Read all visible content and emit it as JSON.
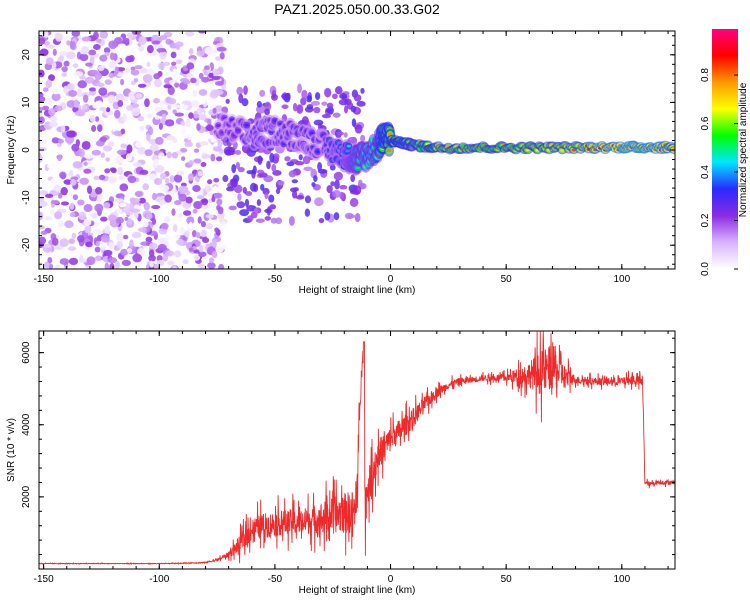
{
  "title": "PAZ1.2025.050.00.33.G02",
  "colors": {
    "snr_line": "#ee2a2a",
    "colormap": [
      "#ffffff",
      "#d9b3ff",
      "#8a2be2",
      "#2a2aff",
      "#00e5ff",
      "#00ff00",
      "#ffff00",
      "#ff9900",
      "#ff0000",
      "#ff0080"
    ]
  },
  "chart_data": [
    {
      "type": "heatmap",
      "xlabel": "Height of straight line (km)",
      "ylabel": "Frequency (Hz)",
      "xlim": [
        -152,
        123
      ],
      "ylim": [
        -25,
        25
      ],
      "x_ticks": [
        -150,
        -100,
        -50,
        0,
        50,
        100
      ],
      "x_tick_labels": [
        "-150",
        "-100",
        "-50",
        "0",
        "50",
        "100"
      ],
      "y_ticks": [
        -20,
        -10,
        0,
        10,
        20
      ],
      "y_tick_labels": [
        "-20",
        "-10",
        "0",
        "10",
        "20"
      ],
      "colorbar": {
        "label": "Normalized spectral amplitude",
        "range": [
          0,
          0.99
        ],
        "ticks": [
          0.0,
          0.2,
          0.4,
          0.6,
          0.8
        ],
        "tick_labels": [
          "0.0",
          "0.2",
          "0.4",
          "0.6",
          "0.8"
        ]
      },
      "ridge": {
        "x": [
          -75,
          -60,
          -50,
          -40,
          -30,
          -20,
          -15,
          -10,
          -5,
          -3,
          0,
          5,
          10,
          20,
          40,
          60,
          80,
          100,
          110,
          123
        ],
        "y": [
          5,
          3,
          4,
          3,
          1,
          -1,
          -2,
          -1,
          1,
          3,
          2,
          1.5,
          1,
          0.5,
          0.5,
          0.5,
          0.5,
          0.6,
          0.6,
          0.5
        ],
        "amplitude": [
          0.25,
          0.3,
          0.3,
          0.3,
          0.3,
          0.4,
          0.5,
          0.55,
          0.6,
          0.7,
          0.75,
          0.7,
          0.65,
          0.75,
          0.7,
          0.72,
          0.78,
          0.85,
          0.85,
          0.8
        ]
      }
    },
    {
      "type": "line",
      "xlabel": "Height of straight line (km)",
      "ylabel": "SNR (10 * v/v)",
      "xlim": [
        -152,
        123
      ],
      "ylim": [
        0,
        6600
      ],
      "x_ticks": [
        -150,
        -100,
        -50,
        0,
        50,
        100
      ],
      "x_tick_labels": [
        "-150",
        "-100",
        "-50",
        "0",
        "50",
        "100"
      ],
      "y_ticks": [
        2000,
        4000,
        6000
      ],
      "y_tick_labels": [
        "2000",
        "4000",
        "6000"
      ],
      "series": [
        {
          "x": [
            -152,
            -140,
            -120,
            -100,
            -90,
            -80,
            -75,
            -70,
            -65,
            -60,
            -55,
            -50,
            -45,
            -40,
            -35,
            -30,
            -25,
            -20,
            -15,
            -12,
            -11,
            -10,
            -8,
            -5,
            0,
            5,
            10,
            15,
            20,
            25,
            30,
            35,
            40,
            50,
            60,
            65,
            70,
            75,
            80,
            90,
            100,
            105,
            108,
            109,
            110,
            112,
            115,
            120,
            123
          ],
          "y": [
            150,
            150,
            150,
            150,
            160,
            180,
            250,
            400,
            700,
            1100,
            1200,
            1250,
            1300,
            1300,
            1350,
            1400,
            1500,
            1550,
            1600,
            6300,
            1700,
            2200,
            2600,
            3200,
            3600,
            3900,
            4200,
            4600,
            4900,
            5100,
            5200,
            5250,
            5300,
            5300,
            5400,
            5450,
            5600,
            5350,
            5250,
            5200,
            5200,
            5250,
            5200,
            5150,
            2400,
            2350,
            2400,
            2400,
            2400
          ],
          "jitter": [
            10,
            10,
            10,
            10,
            10,
            20,
            40,
            120,
            350,
            450,
            500,
            500,
            500,
            500,
            550,
            650,
            700,
            800,
            900,
            200,
            900,
            700,
            700,
            600,
            500,
            450,
            400,
            300,
            200,
            150,
            150,
            120,
            120,
            150,
            500,
            900,
            900,
            500,
            150,
            150,
            150,
            200,
            200,
            150,
            100,
            80,
            80,
            80,
            80
          ]
        }
      ]
    }
  ]
}
